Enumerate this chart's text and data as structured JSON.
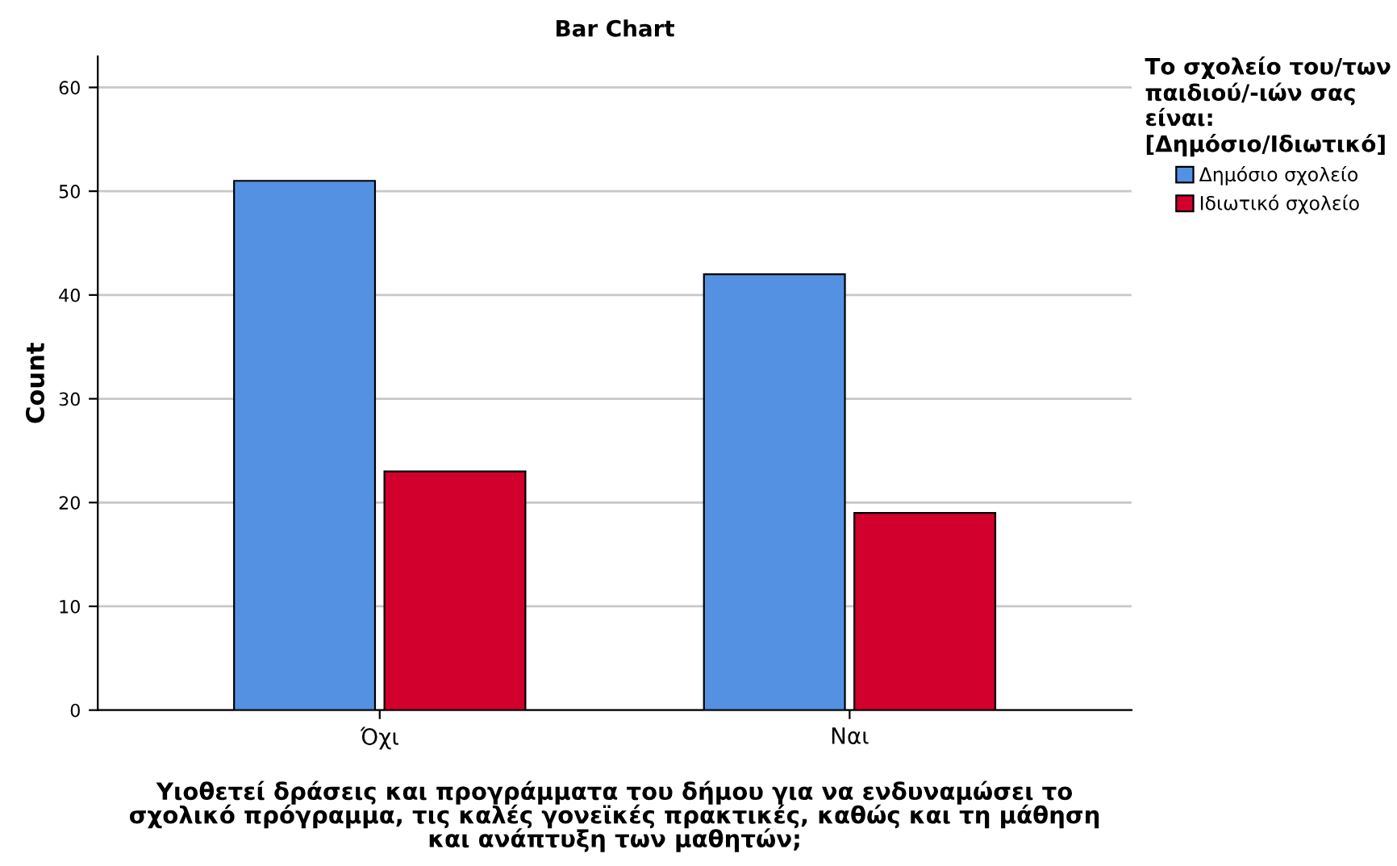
{
  "chart_data": {
    "type": "bar",
    "title": "Bar Chart",
    "xlabel": "Υιοθετεί δράσεις και προγράμματα του δήμου για να ενδυναμώσει το\nσχολικό πρόγραμμα, τις καλές γονεϊκές πρακτικές, καθώς και τη μάθηση\nκαι ανάπτυξη των μαθητών;",
    "ylabel": "Count",
    "legend_title": "Το σχολείο του/των\nπαιδιού/-ιών σας\nείναι:\n[Δημόσιο/Ιδιωτικό]",
    "categories": [
      "Όχι",
      "Ναι"
    ],
    "series": [
      {
        "name": "Δημόσιο σχολείο",
        "color": "#5591e2",
        "values": [
          51,
          42
        ]
      },
      {
        "name": "Ιδιωτικό σχολείο",
        "color": "#d2002c",
        "values": [
          23,
          19
        ]
      }
    ],
    "ylim": [
      0,
      63
    ],
    "yticks": [
      0,
      10,
      20,
      30,
      40,
      50,
      60
    ],
    "grid": "y",
    "legend": "top right"
  }
}
